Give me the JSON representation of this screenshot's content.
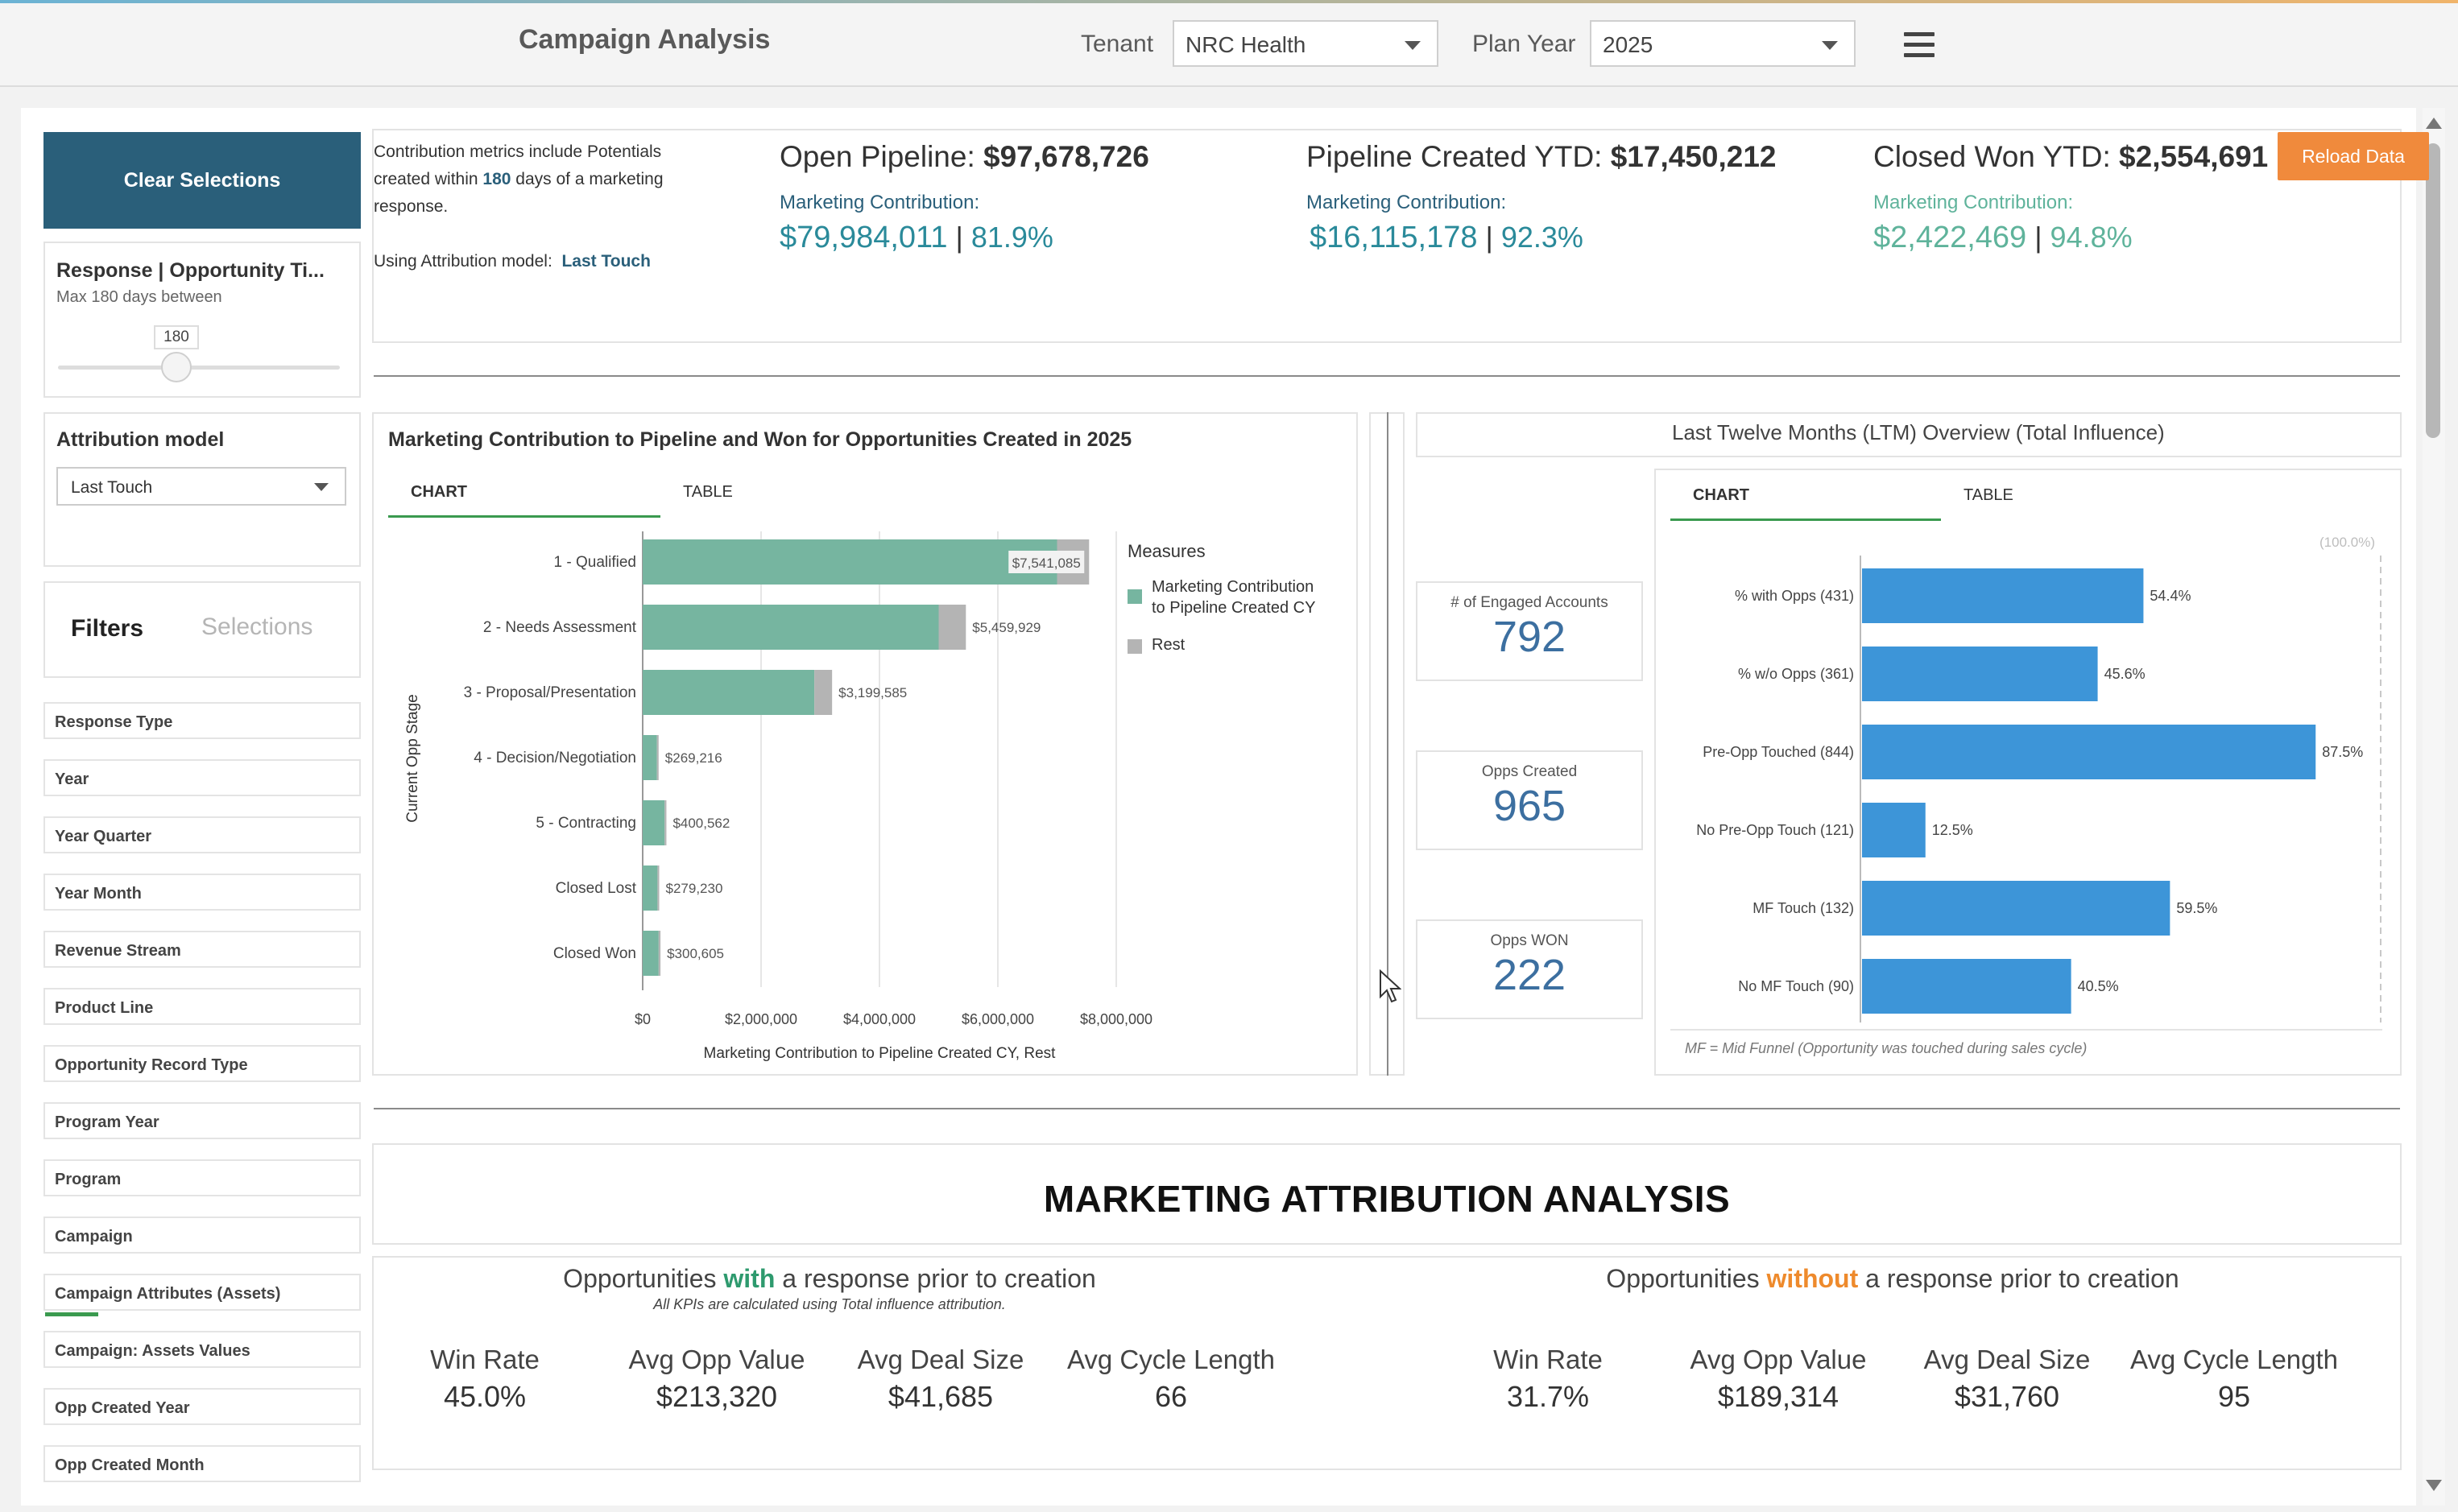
{
  "header": {
    "title": "Campaign Analysis",
    "tenant_label": "Tenant",
    "tenant_value": "NRC Health",
    "plan_year_label": "Plan Year",
    "plan_year_value": "2025",
    "menu_icon": "hamburger-icon"
  },
  "sidebar": {
    "clear_label": "Clear Selections",
    "slider": {
      "title": "Response | Opportunity Ti...",
      "subtitle": "Max 180 days between",
      "value": "180",
      "fraction": 0.5
    },
    "attribution": {
      "title": "Attribution model",
      "value": "Last Touch"
    },
    "tabs": {
      "filters": "Filters",
      "selections": "Selections"
    },
    "filters": [
      "Response Type",
      "Year",
      "Year Quarter",
      "Year Month",
      "Revenue Stream",
      "Product Line",
      "Opportunity Record Type",
      "Program Year",
      "Program",
      "Campaign",
      "Campaign Attributes (Assets)",
      "Campaign: Assets Values",
      "Opp Created Year",
      "Opp Created Month"
    ]
  },
  "kpis": {
    "note_line1": "Contribution metrics include Potentials",
    "note_line2_pre": "created within ",
    "note_days": "180",
    "note_line2_post": " days of a marketing",
    "note_line3": "response.",
    "model_label": "Using Attribution model:",
    "model_value": "Last Touch",
    "mc_label": "Marketing Contribution:",
    "open_pipeline": {
      "label": "Open Pipeline: ",
      "value": "$97,678,726",
      "mc": "$79,984,011",
      "pct": "81.9%"
    },
    "pipeline_created": {
      "label": "Pipeline Created YTD: ",
      "value": "$17,450,212",
      "mc": "$16,115,178",
      "pct": "92.3%"
    },
    "closed_won": {
      "label": "Closed Won YTD: ",
      "value": "$2,554,691",
      "mc": "$2,422,469",
      "pct": "94.8%"
    },
    "reload_label": "Reload Data",
    "colors": {
      "mc_primary": "#2a8a9a",
      "mc_light": "#5fb39b"
    }
  },
  "contribution_chart": {
    "title": "Marketing Contribution to Pipeline and Won for Opportunities Created in 2025",
    "tabs": [
      "CHART",
      "TABLE"
    ],
    "legend_title": "Measures",
    "legend": [
      "Marketing Contribution",
      "to Pipeline Created CY",
      "Rest"
    ]
  },
  "ltm": {
    "title": "Last Twelve Months (LTM) Overview (Total Influence)",
    "tabs": [
      "CHART",
      "TABLE"
    ],
    "engaged_label": "# of Engaged Accounts",
    "engaged_value": "792",
    "opps_created_label": "Opps Created",
    "opps_created_value": "965",
    "opps_won_label": "Opps WON",
    "opps_won_value": "222",
    "ref_label": "(100.0%)",
    "footnote": "MF = Mid Funnel (Opportunity was touched during sales cycle)"
  },
  "chart_data": [
    {
      "type": "bar",
      "orientation": "horizontal",
      "stacked": true,
      "categories": [
        "1 - Qualified",
        "2 - Needs Assessment",
        "3 - Proposal/Presentation",
        "4 - Decision/Negotiation",
        "5 - Contracting",
        "Closed Lost",
        "Closed Won"
      ],
      "series": [
        {
          "name": "Marketing Contribution to Pipeline Created CY",
          "color": "#76b5a0",
          "values": [
            7000000,
            5000000,
            2900000,
            240000,
            370000,
            250000,
            270000
          ]
        },
        {
          "name": "Rest",
          "color": "#b4b4b4",
          "values": [
            541085,
            459929,
            299585,
            29216,
            30562,
            29230,
            30605
          ]
        }
      ],
      "data_labels": [
        "$7,541,085",
        "$5,459,929",
        "$3,199,585",
        "$269,216",
        "$400,562",
        "$279,230",
        "$300,605"
      ],
      "xlabel": "Marketing Contribution to Pipeline Created CY, Rest",
      "ylabel": "Current Opp Stage",
      "xticks": [
        "$0",
        "$2,000,000",
        "$4,000,000",
        "$6,000,000",
        "$8,000,000"
      ],
      "xlim": [
        0,
        8000000
      ],
      "grid": true,
      "legend_position": "right"
    },
    {
      "type": "bar",
      "orientation": "horizontal",
      "categories": [
        "% with Opps (431)",
        "% w/o Opps (361)",
        "Pre-Opp Touched (844)",
        "No Pre-Opp Touch (121)",
        "MF Touch (132)",
        "No MF Touch (90)"
      ],
      "values": [
        54.4,
        45.6,
        87.5,
        12.5,
        59.5,
        40.5
      ],
      "labels": [
        "54.4%",
        "45.6%",
        "87.5%",
        "12.5%",
        "59.5%",
        "40.5%"
      ],
      "xlim": [
        0,
        100
      ],
      "color": "#3d95d8"
    }
  ],
  "attribution": {
    "title": "MARKETING ATTRIBUTION ANALYSIS",
    "with": {
      "pre": "Opportunities ",
      "kw": "with",
      "post": " a response prior to creation",
      "note": "All KPIs are calculated using Total influence attribution.",
      "metrics": [
        {
          "label": "Win Rate",
          "value": "45.0%"
        },
        {
          "label": "Avg Opp Value",
          "value": "$213,320"
        },
        {
          "label": "Avg Deal Size",
          "value": "$41,685"
        },
        {
          "label": "Avg Cycle Length",
          "value": "66"
        }
      ]
    },
    "without": {
      "pre": "Opportunities ",
      "kw": "without",
      "post": " a response prior to creation",
      "metrics": [
        {
          "label": "Win Rate",
          "value": "31.7%"
        },
        {
          "label": "Avg Opp Value",
          "value": "$189,314"
        },
        {
          "label": "Avg Deal Size",
          "value": "$31,760"
        },
        {
          "label": "Avg Cycle Length",
          "value": "95"
        }
      ]
    }
  }
}
